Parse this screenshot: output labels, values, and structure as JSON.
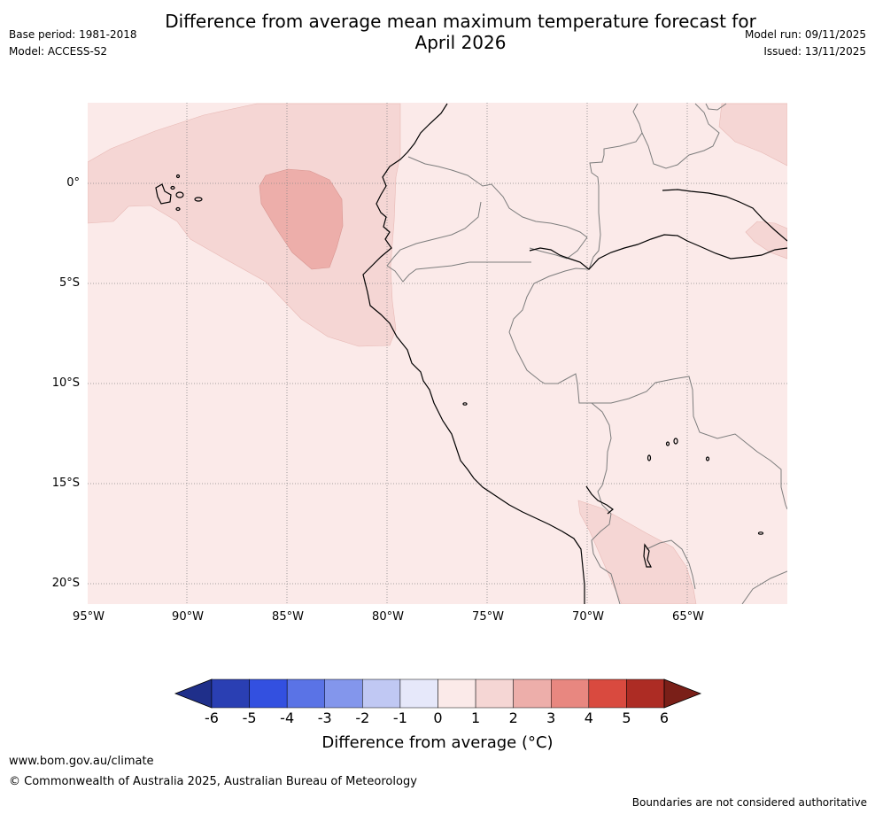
{
  "title_line1": "Difference from average mean maximum temperature forecast for",
  "title_line2": "April 2026",
  "base_period": "Base period: 1981-2018",
  "model": "Model: ACCESS-S2",
  "model_run": "Model run: 09/11/2025",
  "issued": "Issued: 13/11/2025",
  "lat_labels": [
    "0°",
    "5°S",
    "10°S",
    "15°S",
    "20°S"
  ],
  "lon_labels": [
    "95°W",
    "90°W",
    "85°W",
    "80°W",
    "75°W",
    "70°W",
    "65°W"
  ],
  "colorbar": {
    "title": "Difference from average (°C)",
    "ticks": [
      "-6",
      "-5",
      "-4",
      "-3",
      "-2",
      "-1",
      "0",
      "1",
      "2",
      "3",
      "4",
      "5",
      "6"
    ],
    "colors": [
      "#1f2f8a",
      "#2a3fb3",
      "#3350e0",
      "#5a73e6",
      "#8396ec",
      "#c0c8f3",
      "#e6e8fa",
      "#fbeae9",
      "#f5d6d4",
      "#edaeaa",
      "#e88780",
      "#d94a3f",
      "#ad2c24",
      "#7a1f18"
    ]
  },
  "footer_url": "www.bom.gov.au/climate",
  "footer_copyright": "© Commonwealth of Australia 2025, Australian Bureau of Meteorology",
  "footer_note": "Boundaries are not considered authoritative"
}
